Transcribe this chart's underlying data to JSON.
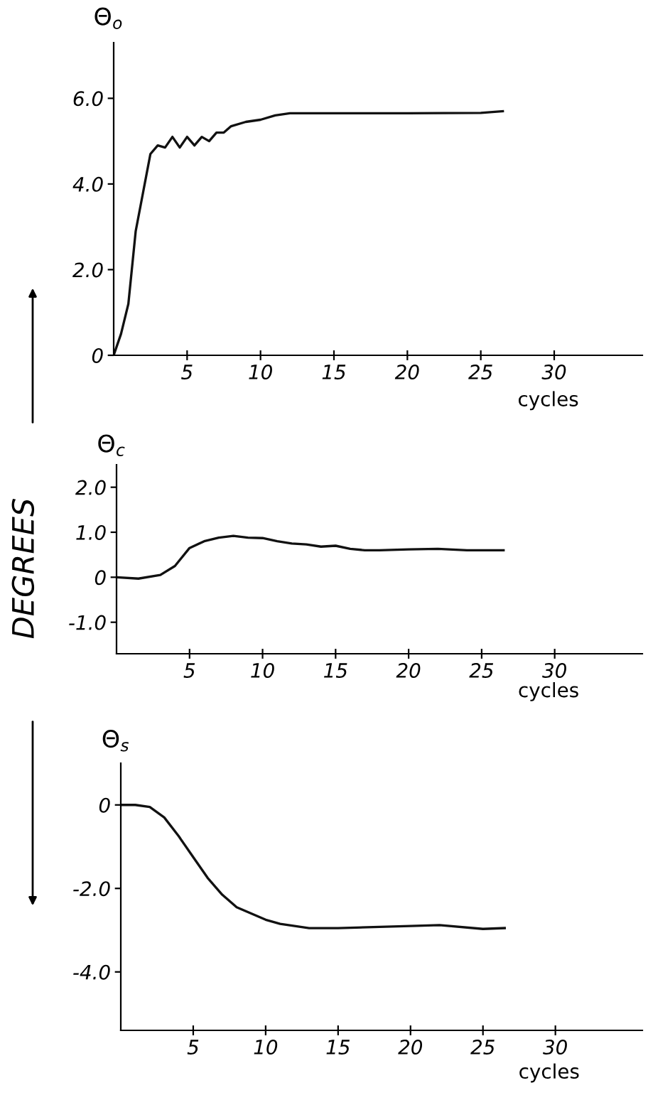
{
  "chart_data": [
    {
      "type": "line",
      "ylabel": "Θ$_{o}$",
      "xlabel": "cycles",
      "xlim": [
        0,
        36
      ],
      "ylim": [
        0,
        7.3
      ],
      "xticks": [
        5,
        10,
        15,
        20,
        25,
        30
      ],
      "yticks": [
        0,
        {
          "value": 2,
          "label": "2.0"
        },
        {
          "value": 4,
          "label": "4.0"
        },
        {
          "value": 6,
          "label": "6.0"
        }
      ],
      "grid": false,
      "legend": false,
      "series": [
        {
          "color": "#111111",
          "x": [
            0,
            0.5,
            1,
            1.5,
            2,
            2.5,
            3,
            3.5,
            4,
            4.5,
            5,
            5.5,
            6,
            6.5,
            7,
            7.5,
            8,
            9,
            10,
            11,
            12,
            15,
            20,
            25,
            26.5
          ],
          "values": [
            0,
            0.5,
            1.2,
            2.9,
            3.8,
            4.7,
            4.9,
            4.85,
            5.1,
            4.85,
            5.1,
            4.9,
            5.1,
            5.0,
            5.2,
            5.2,
            5.35,
            5.45,
            5.5,
            5.6,
            5.65,
            5.65,
            5.65,
            5.66,
            5.7
          ]
        }
      ]
    },
    {
      "type": "line",
      "ylabel": "Θ$_{c}$",
      "xlabel": "cycles",
      "xlim": [
        0,
        36
      ],
      "ylim": [
        -1.7,
        2.5
      ],
      "xticks": [
        5,
        10,
        15,
        20,
        25,
        30
      ],
      "yticks": [
        {
          "value": -1,
          "label": "-1.0"
        },
        0,
        {
          "value": 1,
          "label": "1.0"
        },
        {
          "value": 2,
          "label": "2.0"
        }
      ],
      "grid": false,
      "legend": false,
      "annotations": [
        "DEGREES"
      ],
      "series": [
        {
          "color": "#111111",
          "x": [
            0,
            1.5,
            3,
            4,
            5,
            6,
            7,
            8,
            9,
            10,
            11,
            12,
            13,
            14,
            15,
            16,
            17,
            18,
            20,
            22,
            24,
            26.5
          ],
          "values": [
            0,
            -0.03,
            0.05,
            0.25,
            0.65,
            0.8,
            0.88,
            0.92,
            0.88,
            0.87,
            0.8,
            0.75,
            0.73,
            0.68,
            0.7,
            0.63,
            0.6,
            0.6,
            0.62,
            0.63,
            0.6,
            0.6
          ]
        }
      ]
    },
    {
      "type": "line",
      "ylabel": "Θ$_{s}$",
      "xlabel": "cycles",
      "xlim": [
        0,
        36
      ],
      "ylim": [
        -5.4,
        1.0
      ],
      "xticks": [
        5,
        10,
        15,
        20,
        25,
        30
      ],
      "yticks": [
        {
          "value": -4,
          "label": "-4.0"
        },
        {
          "value": -2,
          "label": "-2.0"
        },
        0
      ],
      "grid": false,
      "legend": false,
      "series": [
        {
          "color": "#111111",
          "x": [
            0,
            1,
            2,
            3,
            4,
            5,
            6,
            7,
            8,
            9,
            10,
            11,
            12,
            13,
            15,
            20,
            22,
            25,
            26.5
          ],
          "values": [
            0,
            0,
            -0.05,
            -0.3,
            -0.75,
            -1.25,
            -1.75,
            -2.15,
            -2.45,
            -2.6,
            -2.75,
            -2.85,
            -2.9,
            -2.95,
            -2.95,
            -2.9,
            -2.88,
            -2.97,
            -2.95
          ]
        }
      ]
    }
  ]
}
